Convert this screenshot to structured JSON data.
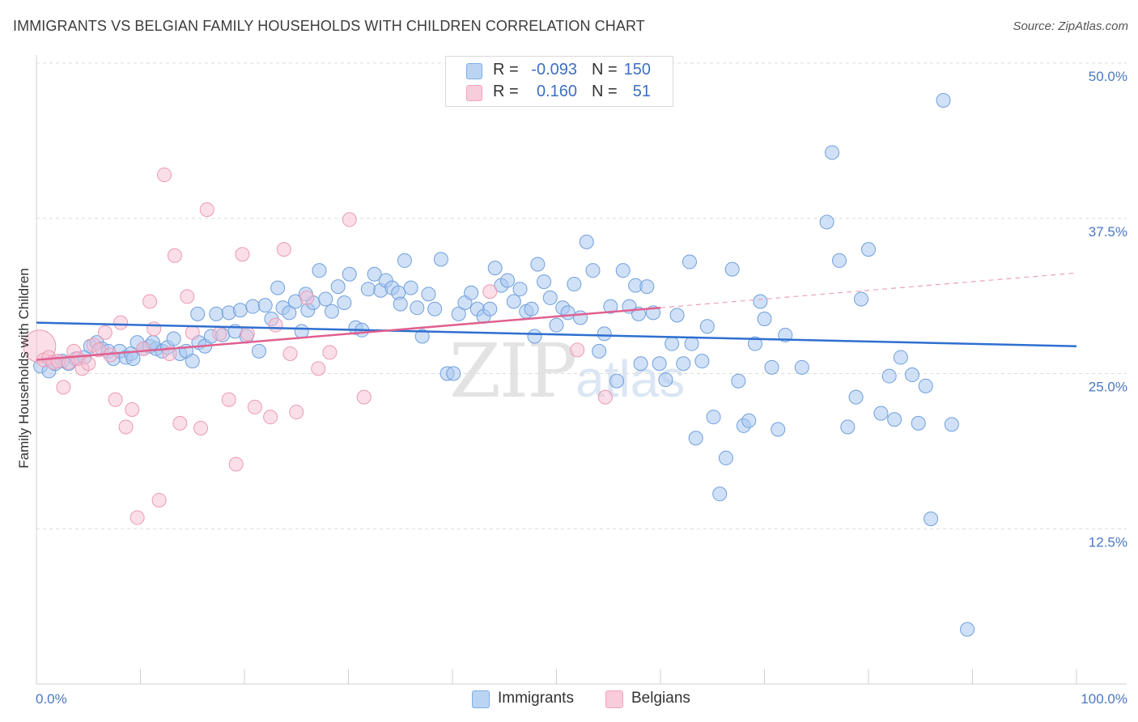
{
  "title": "IMMIGRANTS VS BELGIAN FAMILY HOUSEHOLDS WITH CHILDREN CORRELATION CHART",
  "source": "Source: ZipAtlas.com",
  "watermark": {
    "zip": "ZIP",
    "atlas": "atlas"
  },
  "colors": {
    "blue": "#7aaee8",
    "blue_line": "#2e6fd0",
    "pink": "#f2a3bd",
    "pink_line": "#e0608f",
    "axis_text": "#4a78c2"
  },
  "legend": {
    "rows": [
      {
        "r_label": "R =",
        "r_value": "-0.093",
        "n_label": "N =",
        "n_value": "150"
      },
      {
        "r_label": "R =",
        "r_value": "0.160",
        "n_label": "N =",
        "n_value": "51"
      }
    ]
  },
  "bottom_legend": {
    "immigrants": "Immigrants",
    "belgians": "Belgians"
  },
  "chart_data": {
    "type": "scatter",
    "title": "IMMIGRANTS VS BELGIAN FAMILY HOUSEHOLDS WITH CHILDREN CORRELATION CHART",
    "xlabel": "",
    "ylabel": "Family Households with Children",
    "xlim": [
      0,
      100
    ],
    "ylim": [
      0,
      52
    ],
    "x_ticks": [
      "0.0%",
      "100.0%"
    ],
    "y_ticks": [
      {
        "value": 12.5,
        "label": "12.5%"
      },
      {
        "value": 25.0,
        "label": "25.0%"
      },
      {
        "value": 37.5,
        "label": "37.5%"
      },
      {
        "value": 50.0,
        "label": "50.0%"
      }
    ],
    "grid": true,
    "series": [
      {
        "name": "Immigrants",
        "trend": {
          "x0": 0,
          "y0": 29.1,
          "x1": 100,
          "y1": 27.2
        },
        "points": [
          [
            0.4,
            25.6
          ],
          [
            1.2,
            25.2
          ],
          [
            1.8,
            25.8
          ],
          [
            2.5,
            26.0
          ],
          [
            3.1,
            25.8
          ],
          [
            3.8,
            26.2
          ],
          [
            4.6,
            26.3
          ],
          [
            5.2,
            27.2
          ],
          [
            5.8,
            27.5
          ],
          [
            6.3,
            27.0
          ],
          [
            6.9,
            26.8
          ],
          [
            7.4,
            26.2
          ],
          [
            8.0,
            26.8
          ],
          [
            8.6,
            26.3
          ],
          [
            9.1,
            26.6
          ],
          [
            9.7,
            27.5
          ],
          [
            10.3,
            27.0
          ],
          [
            10.9,
            27.2
          ],
          [
            11.5,
            27.0
          ],
          [
            12.1,
            26.8
          ],
          [
            12.6,
            27.1
          ],
          [
            13.2,
            27.8
          ],
          [
            13.8,
            26.6
          ],
          [
            14.4,
            26.8
          ],
          [
            15.0,
            26.0
          ],
          [
            15.6,
            27.5
          ],
          [
            16.2,
            27.2
          ],
          [
            16.8,
            28.0
          ],
          [
            17.3,
            29.8
          ],
          [
            17.9,
            28.1
          ],
          [
            18.5,
            29.9
          ],
          [
            19.1,
            28.4
          ],
          [
            19.6,
            30.1
          ],
          [
            20.2,
            28.0
          ],
          [
            20.8,
            30.4
          ],
          [
            21.4,
            26.8
          ],
          [
            22.0,
            30.5
          ],
          [
            22.6,
            29.4
          ],
          [
            23.2,
            31.9
          ],
          [
            23.7,
            30.3
          ],
          [
            24.3,
            29.9
          ],
          [
            24.9,
            30.8
          ],
          [
            25.5,
            28.4
          ],
          [
            26.1,
            30.1
          ],
          [
            26.6,
            30.7
          ],
          [
            27.2,
            33.3
          ],
          [
            27.8,
            31.0
          ],
          [
            28.4,
            30.0
          ],
          [
            29.0,
            32.0
          ],
          [
            29.6,
            30.7
          ],
          [
            30.1,
            33.0
          ],
          [
            30.7,
            28.7
          ],
          [
            31.3,
            28.5
          ],
          [
            31.9,
            31.8
          ],
          [
            32.5,
            33.0
          ],
          [
            33.1,
            31.7
          ],
          [
            33.6,
            32.5
          ],
          [
            34.2,
            31.9
          ],
          [
            34.8,
            31.5
          ],
          [
            35.4,
            34.1
          ],
          [
            36.0,
            31.9
          ],
          [
            36.6,
            30.3
          ],
          [
            37.1,
            28.0
          ],
          [
            37.7,
            31.4
          ],
          [
            38.3,
            30.2
          ],
          [
            38.9,
            34.2
          ],
          [
            39.5,
            25.0
          ],
          [
            40.1,
            25.0
          ],
          [
            40.6,
            29.8
          ],
          [
            41.2,
            30.7
          ],
          [
            41.8,
            31.5
          ],
          [
            42.4,
            30.2
          ],
          [
            43.0,
            29.6
          ],
          [
            43.6,
            30.2
          ],
          [
            44.1,
            33.5
          ],
          [
            44.7,
            32.1
          ],
          [
            45.3,
            32.5
          ],
          [
            45.9,
            30.8
          ],
          [
            46.5,
            31.8
          ],
          [
            47.1,
            30.0
          ],
          [
            47.6,
            30.2
          ],
          [
            48.2,
            33.8
          ],
          [
            48.8,
            32.4
          ],
          [
            49.4,
            31.1
          ],
          [
            50.0,
            28.9
          ],
          [
            50.6,
            30.3
          ],
          [
            51.1,
            29.9
          ],
          [
            51.7,
            32.2
          ],
          [
            52.3,
            29.5
          ],
          [
            52.9,
            35.6
          ],
          [
            53.5,
            33.3
          ],
          [
            54.1,
            26.8
          ],
          [
            54.6,
            28.2
          ],
          [
            55.2,
            30.4
          ],
          [
            55.8,
            24.4
          ],
          [
            56.4,
            33.3
          ],
          [
            57.0,
            30.4
          ],
          [
            57.6,
            32.1
          ],
          [
            58.1,
            25.8
          ],
          [
            58.7,
            32.0
          ],
          [
            59.3,
            29.9
          ],
          [
            59.9,
            25.8
          ],
          [
            60.5,
            24.5
          ],
          [
            61.1,
            27.4
          ],
          [
            61.6,
            29.7
          ],
          [
            62.2,
            25.8
          ],
          [
            62.8,
            34.0
          ],
          [
            63.4,
            19.8
          ],
          [
            64.0,
            26.0
          ],
          [
            64.5,
            28.8
          ],
          [
            65.1,
            21.5
          ],
          [
            65.7,
            15.3
          ],
          [
            66.3,
            18.2
          ],
          [
            66.9,
            33.4
          ],
          [
            67.5,
            24.4
          ],
          [
            68.0,
            20.8
          ],
          [
            68.5,
            21.2
          ],
          [
            69.1,
            27.4
          ],
          [
            69.6,
            30.8
          ],
          [
            70.0,
            29.4
          ],
          [
            70.7,
            25.5
          ],
          [
            71.3,
            20.5
          ],
          [
            72.0,
            28.1
          ],
          [
            73.6,
            25.5
          ],
          [
            76.0,
            37.2
          ],
          [
            76.5,
            42.8
          ],
          [
            77.2,
            34.1
          ],
          [
            78.0,
            20.7
          ],
          [
            78.8,
            23.1
          ],
          [
            79.3,
            31.0
          ],
          [
            80.0,
            35.0
          ],
          [
            81.2,
            21.8
          ],
          [
            82.0,
            24.8
          ],
          [
            82.5,
            21.3
          ],
          [
            83.1,
            26.3
          ],
          [
            84.2,
            24.9
          ],
          [
            84.8,
            21.0
          ],
          [
            85.5,
            24.0
          ],
          [
            86.0,
            13.3
          ],
          [
            87.2,
            47.0
          ],
          [
            88.0,
            20.9
          ],
          [
            89.5,
            4.4
          ],
          [
            63.0,
            27.4
          ],
          [
            57.9,
            29.8
          ],
          [
            47.9,
            28.0
          ],
          [
            35.0,
            30.6
          ],
          [
            25.9,
            31.4
          ],
          [
            15.5,
            29.8
          ],
          [
            11.2,
            27.5
          ],
          [
            9.3,
            26.2
          ]
        ]
      },
      {
        "name": "Belgians",
        "trend": {
          "x0": 0,
          "y0": 26.1,
          "x1": 60,
          "y1": 30.3,
          "dash_to_x": 100,
          "dash_to_y": 33.1
        },
        "points": [
          [
            0.3,
            27.2
          ],
          [
            0.7,
            26.1
          ],
          [
            1.2,
            26.3
          ],
          [
            1.6,
            25.9
          ],
          [
            2.1,
            26.0
          ],
          [
            2.6,
            23.9
          ],
          [
            3.1,
            25.9
          ],
          [
            3.6,
            26.8
          ],
          [
            4.0,
            26.2
          ],
          [
            4.4,
            25.4
          ],
          [
            5.0,
            25.8
          ],
          [
            5.5,
            27.3
          ],
          [
            6.0,
            26.9
          ],
          [
            6.6,
            28.3
          ],
          [
            7.1,
            26.5
          ],
          [
            7.6,
            22.9
          ],
          [
            8.1,
            29.1
          ],
          [
            8.6,
            20.7
          ],
          [
            9.2,
            22.1
          ],
          [
            9.7,
            13.4
          ],
          [
            10.3,
            27.0
          ],
          [
            10.9,
            30.8
          ],
          [
            11.3,
            28.6
          ],
          [
            11.8,
            14.8
          ],
          [
            12.3,
            41.0
          ],
          [
            12.8,
            26.6
          ],
          [
            13.3,
            34.5
          ],
          [
            13.8,
            21.0
          ],
          [
            14.5,
            31.2
          ],
          [
            15.0,
            28.3
          ],
          [
            15.8,
            20.6
          ],
          [
            16.4,
            38.2
          ],
          [
            17.6,
            28.2
          ],
          [
            18.5,
            22.9
          ],
          [
            19.2,
            17.7
          ],
          [
            19.8,
            34.6
          ],
          [
            20.3,
            28.2
          ],
          [
            21.0,
            22.3
          ],
          [
            22.5,
            21.5
          ],
          [
            23.0,
            28.9
          ],
          [
            23.8,
            35.0
          ],
          [
            24.4,
            26.6
          ],
          [
            25.0,
            21.9
          ],
          [
            26.0,
            31.1
          ],
          [
            27.1,
            25.4
          ],
          [
            28.2,
            26.7
          ],
          [
            30.1,
            37.4
          ],
          [
            31.5,
            23.1
          ],
          [
            43.6,
            31.6
          ],
          [
            52.0,
            26.9
          ],
          [
            54.7,
            23.1
          ]
        ]
      }
    ]
  }
}
